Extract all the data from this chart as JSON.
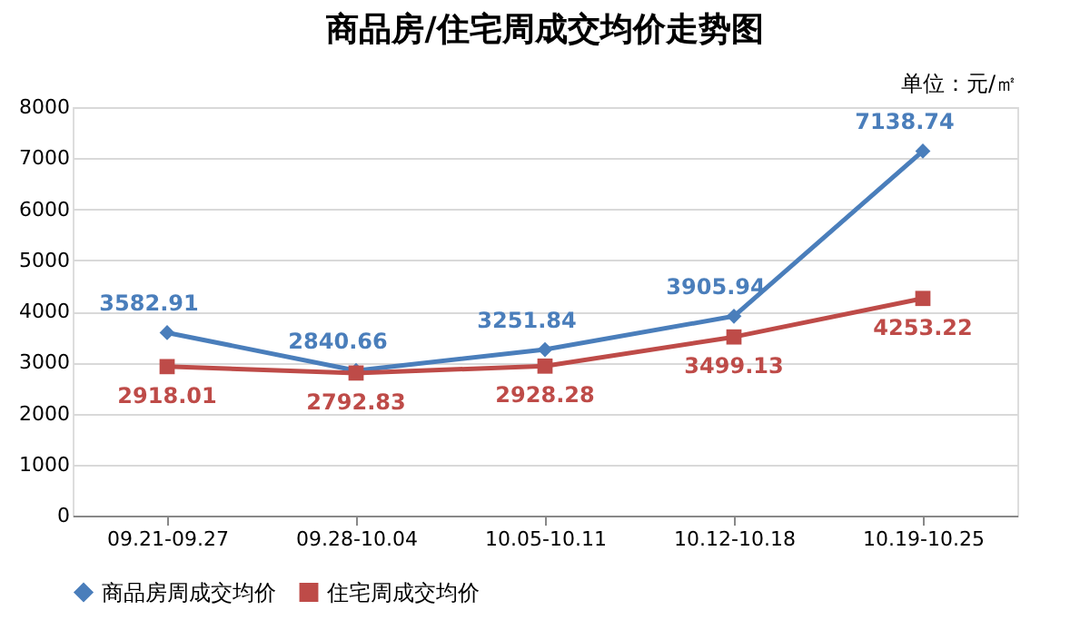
{
  "chart_data": {
    "type": "line",
    "title": "商品房/住宅周成交均价走势图",
    "annotations": [
      "单位：元/㎡"
    ],
    "categories": [
      "09.21-09.27",
      "09.28-10.04",
      "10.05-10.11",
      "10.12-10.18",
      "10.19-10.25"
    ],
    "series": [
      {
        "name": "商品房周成交均价",
        "color": "#4a7ebb",
        "marker": "diamond",
        "values": [
          3582.91,
          2840.66,
          3251.84,
          3905.94,
          7138.74
        ]
      },
      {
        "name": "住宅周成交均价",
        "color": "#be4b48",
        "marker": "square",
        "values": [
          2918.01,
          2792.83,
          2928.28,
          3499.13,
          4253.22
        ]
      }
    ],
    "ylim": [
      0,
      8000
    ],
    "yticks": [
      0,
      1000,
      2000,
      3000,
      4000,
      5000,
      6000,
      7000,
      8000
    ],
    "grid": "y",
    "legend": "bottom",
    "data_labels": true,
    "line_style": "solid"
  }
}
